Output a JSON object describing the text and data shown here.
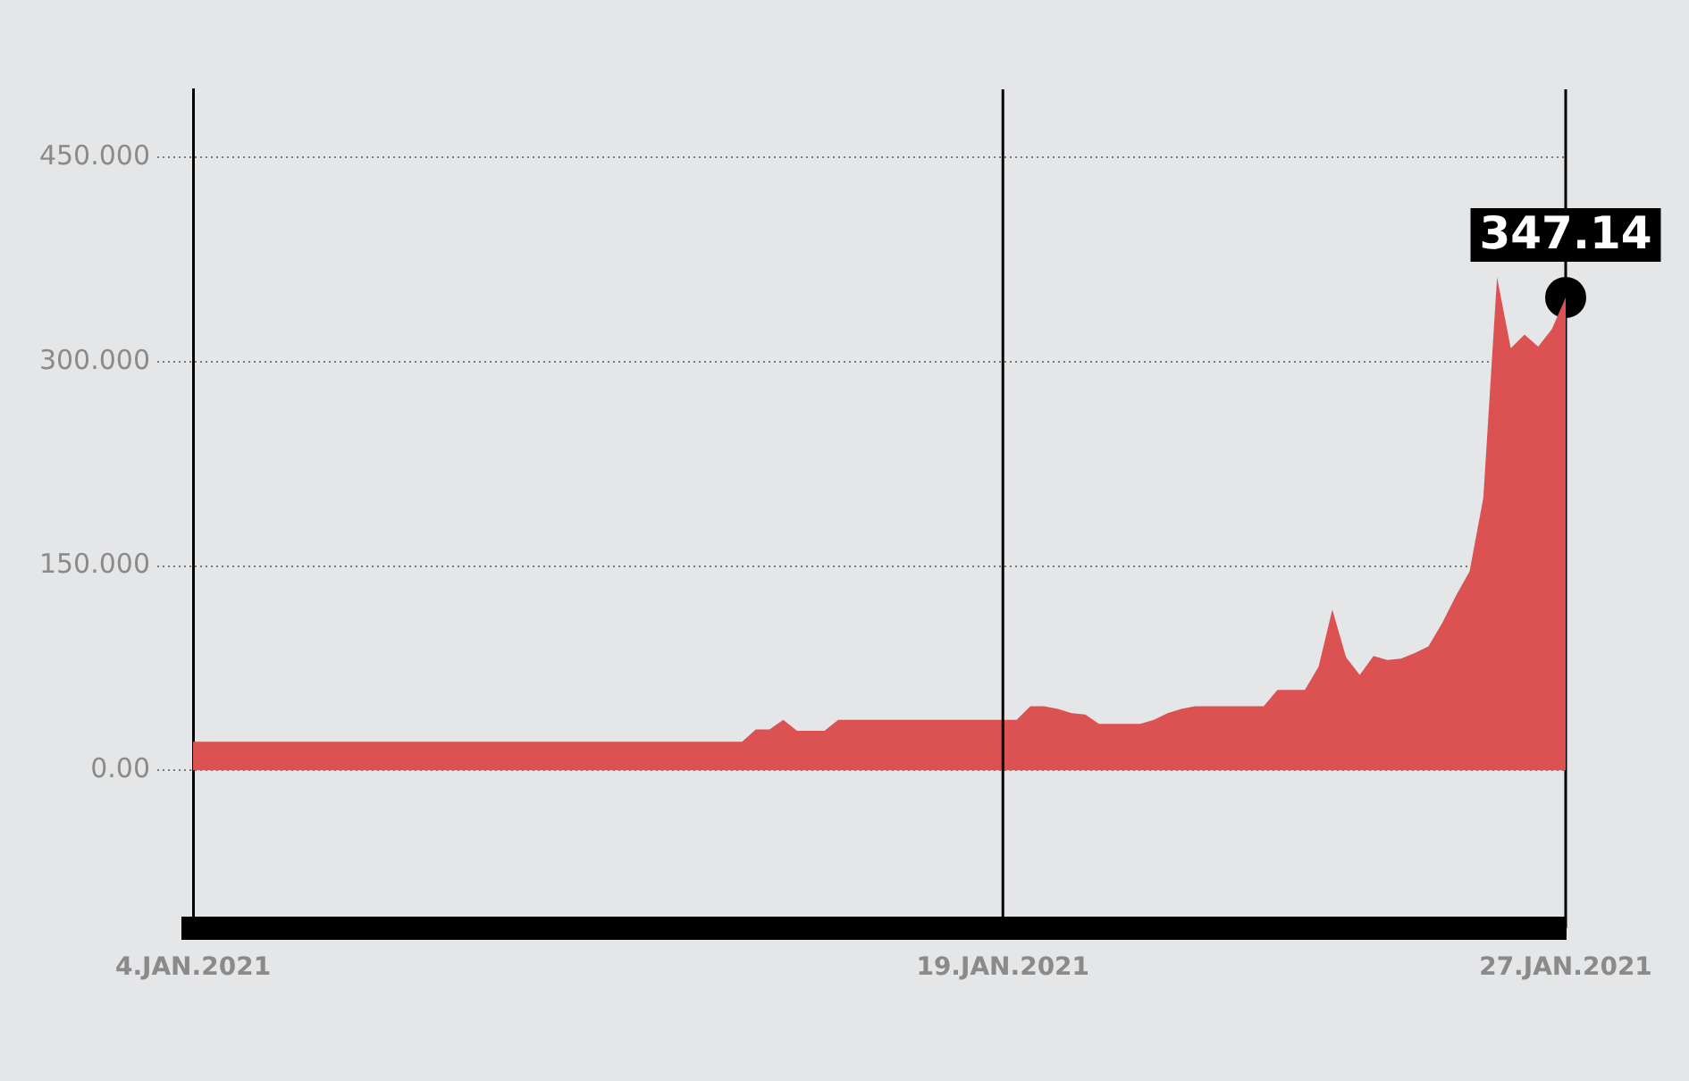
{
  "chart_data": {
    "type": "area",
    "categories": [
      "4.JAN.2021",
      null,
      null,
      null,
      null,
      null,
      null,
      null,
      null,
      null,
      null,
      null,
      null,
      null,
      null,
      null,
      null,
      null,
      null,
      null,
      null,
      null,
      null,
      null,
      null,
      null,
      null,
      null,
      null,
      null,
      null,
      null,
      null,
      null,
      null,
      null,
      null,
      null,
      null,
      null,
      null,
      null,
      null,
      null,
      null,
      null,
      null,
      null,
      null,
      null,
      null,
      null,
      null,
      null,
      null,
      null,
      null,
      null,
      null,
      "19.JAN.2021",
      null,
      null,
      null,
      null,
      null,
      null,
      null,
      null,
      null,
      null,
      null,
      null,
      null,
      null,
      null,
      null,
      null,
      null,
      null,
      null,
      null,
      null,
      null,
      null,
      null,
      null,
      null,
      null,
      null,
      null,
      null,
      null,
      null,
      null,
      null,
      null,
      null,
      null,
      null,
      null,
      "27.JAN.2021"
    ],
    "series": [
      {
        "color": "#dc5253",
        "values": [
          21,
          21,
          21,
          21,
          21,
          21,
          21,
          21,
          21,
          21,
          21,
          21,
          21,
          21,
          21,
          21,
          21,
          21,
          21,
          21,
          21,
          21,
          21,
          21,
          21,
          21,
          21,
          21,
          21,
          21,
          21,
          21,
          21,
          21,
          21,
          21,
          21,
          21,
          21,
          21,
          21,
          30,
          30,
          37,
          29,
          29,
          29,
          37,
          37,
          37,
          37,
          37,
          37,
          37,
          37,
          37,
          37,
          37,
          37,
          37,
          37,
          47,
          47,
          45,
          42,
          41,
          34,
          34,
          34,
          34,
          37,
          42,
          45,
          47,
          47,
          47,
          47,
          47,
          47,
          59,
          59,
          59,
          76,
          118,
          83,
          70,
          84,
          81,
          82,
          86,
          91,
          108,
          128,
          146,
          200,
          362,
          310,
          320,
          311,
          324,
          347.14
        ]
      },
      {
        "type": "scatter",
        "color": "#000000",
        "x": [
          "27.JAN.2021"
        ],
        "values": [
          347.14
        ],
        "value_labels": [
          "347.14"
        ]
      }
    ],
    "ylim": [
      -116,
      500
    ],
    "yticks": [
      {
        "value": 0,
        "label": "0.00"
      },
      {
        "value": 150,
        "label": "150.000"
      },
      {
        "value": 300,
        "label": "300.000"
      },
      {
        "value": 450,
        "label": "450.000"
      }
    ],
    "grid": "y",
    "ref_lines": [
      {
        "axis": "x",
        "value": "19.JAN.2021",
        "color": "#000000"
      }
    ]
  }
}
